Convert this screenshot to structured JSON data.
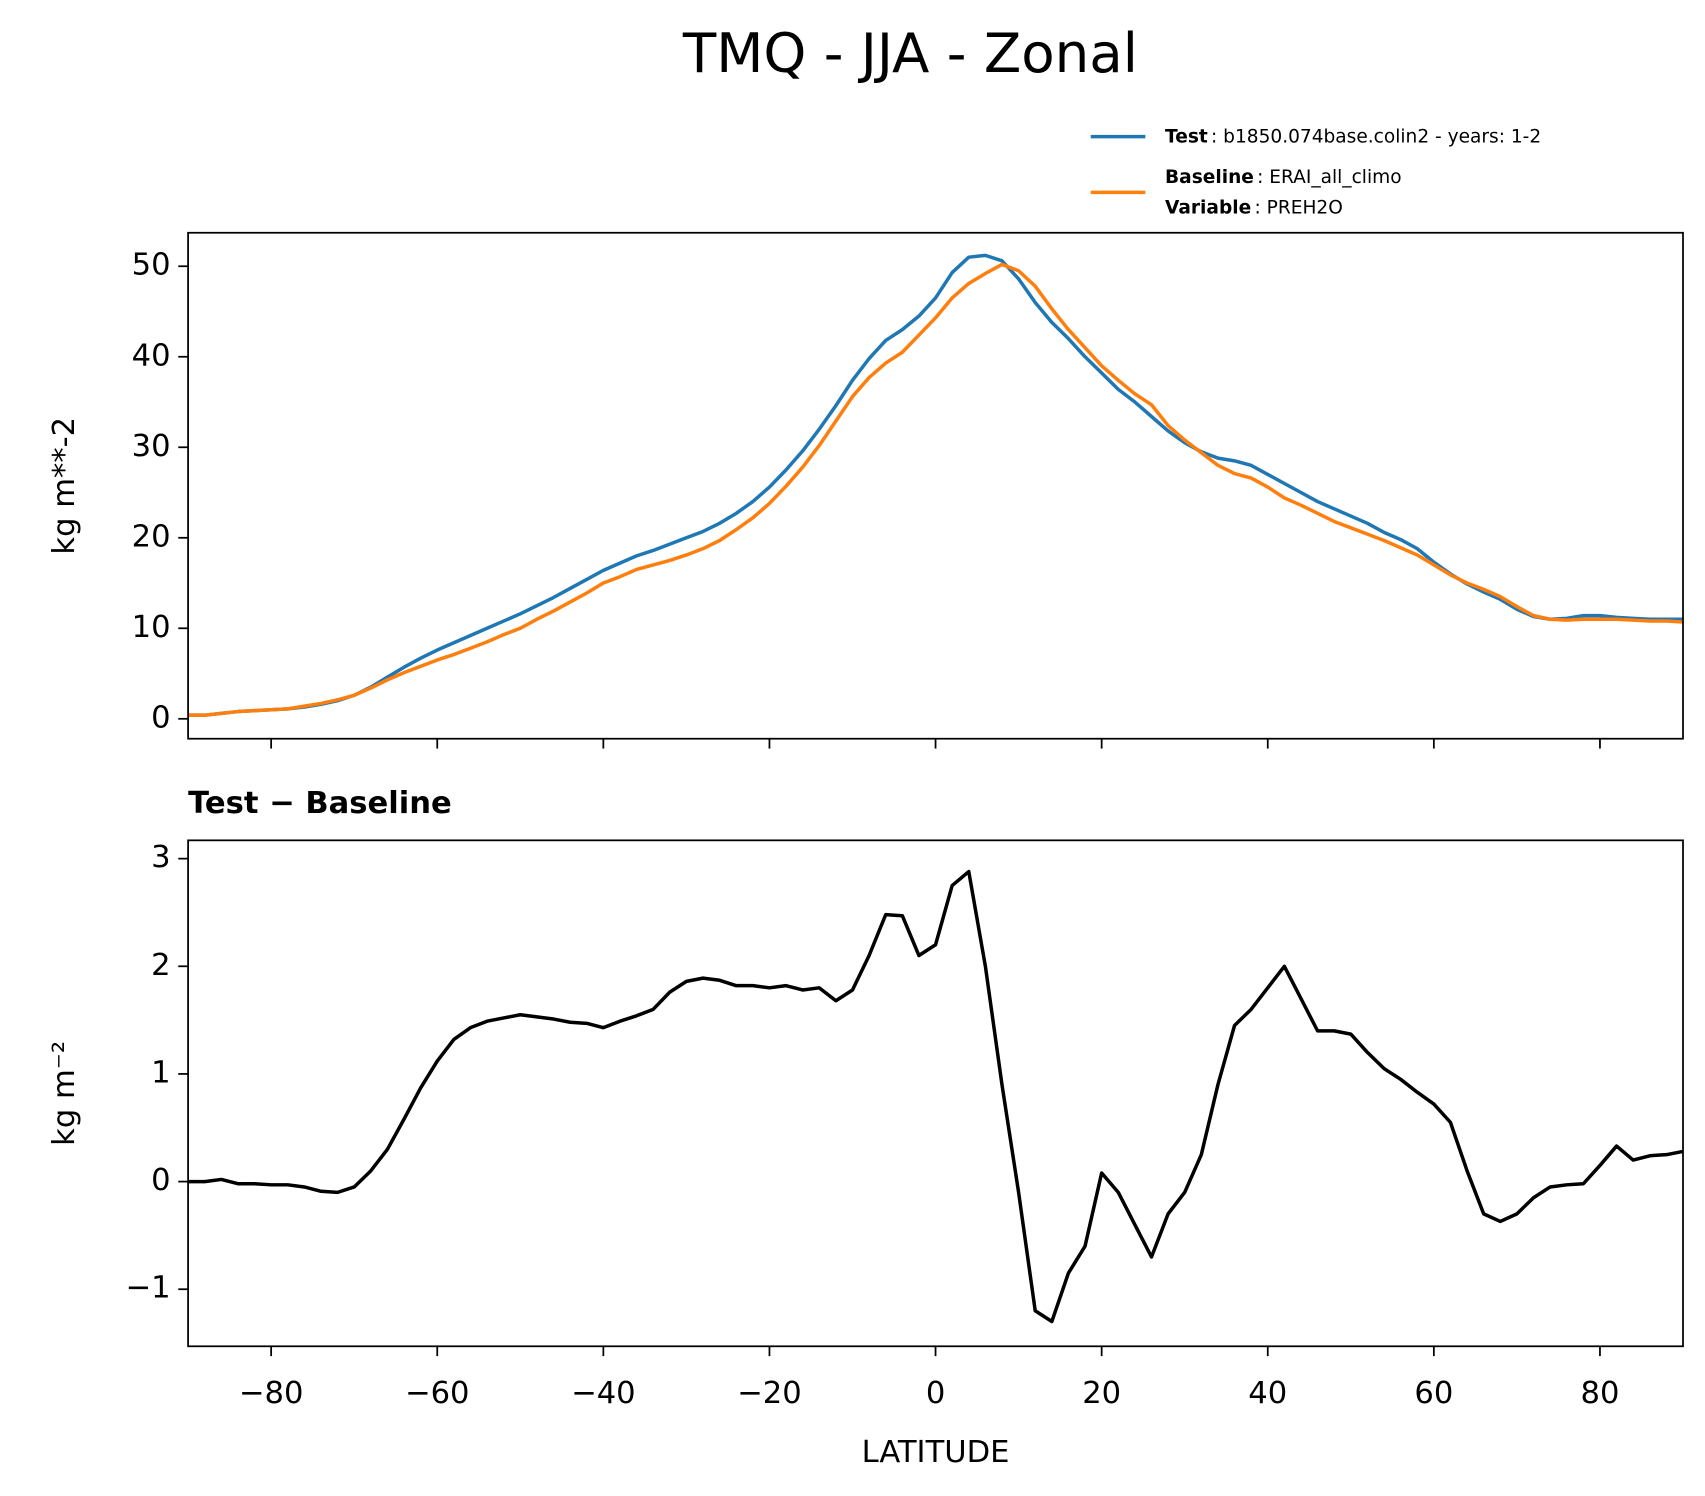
{
  "title": "TMQ - JJA - Zonal",
  "chart_data": [
    {
      "type": "line",
      "ylabel": "kg m**-2",
      "x": [
        -90,
        -88,
        -86,
        -84,
        -82,
        -80,
        -78,
        -76,
        -74,
        -72,
        -70,
        -68,
        -66,
        -64,
        -62,
        -60,
        -58,
        -56,
        -54,
        -52,
        -50,
        -48,
        -46,
        -44,
        -42,
        -40,
        -38,
        -36,
        -34,
        -32,
        -30,
        -28,
        -26,
        -24,
        -22,
        -20,
        -18,
        -16,
        -14,
        -12,
        -10,
        -8,
        -6,
        -4,
        -2,
        0,
        2,
        4,
        6,
        8,
        10,
        12,
        14,
        16,
        18,
        20,
        22,
        24,
        26,
        28,
        30,
        32,
        34,
        36,
        38,
        40,
        42,
        44,
        46,
        48,
        50,
        52,
        54,
        56,
        58,
        60,
        62,
        64,
        66,
        68,
        70,
        72,
        74,
        76,
        78,
        80,
        82,
        84,
        86,
        88,
        90
      ],
      "series": [
        {
          "name": "Test",
          "label": ": b1850.074base.colin2 - years: 1-2",
          "color": "#1f77b4",
          "values": [
            0.4,
            0.4,
            0.6,
            0.8,
            0.9,
            1.0,
            1.1,
            1.3,
            1.6,
            2.0,
            2.6,
            3.5,
            4.6,
            5.7,
            6.7,
            7.6,
            8.4,
            9.2,
            10.0,
            10.8,
            11.6,
            12.5,
            13.4,
            14.4,
            15.4,
            16.4,
            17.2,
            18.0,
            18.6,
            19.3,
            20.0,
            20.7,
            21.6,
            22.7,
            24.0,
            25.6,
            27.5,
            29.6,
            32.0,
            34.6,
            37.4,
            39.8,
            41.8,
            43.0,
            44.5,
            46.5,
            49.3,
            51.0,
            51.2,
            50.6,
            48.6,
            46.0,
            43.8,
            42.0,
            40.0,
            38.2,
            36.4,
            35.0,
            33.4,
            31.8,
            30.5,
            29.5,
            28.8,
            28.5,
            28.0,
            27.0,
            26.0,
            25.0,
            24.0,
            23.2,
            22.4,
            21.6,
            20.6,
            19.8,
            18.8,
            17.3,
            16.0,
            14.9,
            14.0,
            13.2,
            12.1,
            11.3,
            11.0,
            11.1,
            11.4,
            11.4,
            11.2,
            11.1,
            11.0,
            11.0,
            11.0
          ]
        },
        {
          "name": "Baseline",
          "label": ": ERAI_all_climo",
          "extra_name": "Variable",
          "extra_label": ": PREH2O",
          "color": "#ff7f0e",
          "values": [
            0.4,
            0.4,
            0.6,
            0.8,
            0.9,
            1.0,
            1.1,
            1.4,
            1.7,
            2.1,
            2.6,
            3.4,
            4.3,
            5.1,
            5.8,
            6.5,
            7.1,
            7.8,
            8.5,
            9.3,
            10.0,
            11.0,
            11.9,
            12.9,
            13.9,
            15.0,
            15.7,
            16.5,
            17.0,
            17.5,
            18.1,
            18.8,
            19.7,
            20.9,
            22.2,
            23.8,
            25.7,
            27.8,
            30.2,
            32.9,
            35.6,
            37.7,
            39.3,
            40.5,
            42.4,
            44.3,
            46.5,
            48.1,
            49.2,
            50.2,
            49.5,
            47.8,
            45.3,
            43.0,
            41.0,
            39.0,
            37.4,
            35.9,
            34.7,
            32.4,
            30.8,
            29.4,
            28.0,
            27.1,
            26.6,
            25.6,
            24.4,
            23.6,
            22.7,
            21.8,
            21.1,
            20.4,
            19.7,
            18.9,
            18.1,
            17.0,
            15.9,
            15.0,
            14.3,
            13.5,
            12.4,
            11.4,
            11.0,
            10.9,
            11.0,
            11.0,
            11.0,
            10.9,
            10.8,
            10.8,
            10.7
          ]
        }
      ],
      "xlim": [
        -90,
        90
      ],
      "xticks": [
        -80,
        -60,
        -40,
        -20,
        0,
        20,
        40,
        60,
        80
      ],
      "ylim": [
        -2.2,
        53.7
      ],
      "yticks": [
        0,
        10,
        20,
        30,
        40,
        50
      ],
      "grid": false,
      "legend": "upper right"
    },
    {
      "type": "line",
      "title": "Test − Baseline",
      "ylabel": "kg m⁻²",
      "xlabel": "LATITUDE",
      "x": [
        -90,
        -88,
        -86,
        -84,
        -82,
        -80,
        -78,
        -76,
        -74,
        -72,
        -70,
        -68,
        -66,
        -64,
        -62,
        -60,
        -58,
        -56,
        -54,
        -52,
        -50,
        -48,
        -46,
        -44,
        -42,
        -40,
        -38,
        -36,
        -34,
        -32,
        -30,
        -28,
        -26,
        -24,
        -22,
        -20,
        -18,
        -16,
        -14,
        -12,
        -10,
        -8,
        -6,
        -4,
        -2,
        0,
        2,
        4,
        6,
        8,
        10,
        12,
        14,
        16,
        18,
        20,
        22,
        24,
        26,
        28,
        30,
        32,
        34,
        36,
        38,
        40,
        42,
        44,
        46,
        48,
        50,
        52,
        54,
        56,
        58,
        60,
        62,
        64,
        66,
        68,
        70,
        72,
        74,
        76,
        78,
        80,
        82,
        84,
        86,
        88,
        90
      ],
      "series": [
        {
          "color": "#000000",
          "values": [
            0.0,
            0.0,
            0.02,
            -0.02,
            -0.02,
            -0.03,
            -0.03,
            -0.05,
            -0.09,
            -0.1,
            -0.05,
            0.1,
            0.3,
            0.58,
            0.87,
            1.12,
            1.32,
            1.43,
            1.49,
            1.52,
            1.55,
            1.53,
            1.51,
            1.48,
            1.47,
            1.43,
            1.49,
            1.54,
            1.6,
            1.76,
            1.86,
            1.89,
            1.87,
            1.82,
            1.82,
            1.8,
            1.82,
            1.78,
            1.8,
            1.68,
            1.78,
            2.1,
            2.48,
            2.47,
            2.1,
            2.2,
            2.75,
            2.88,
            2.0,
            0.9,
            -0.1,
            -1.2,
            -1.3,
            -0.85,
            -0.6,
            0.08,
            -0.1,
            -0.4,
            -0.7,
            -0.3,
            -0.1,
            0.25,
            0.9,
            1.45,
            1.6,
            1.8,
            2.0,
            1.7,
            1.4,
            1.4,
            1.37,
            1.2,
            1.05,
            0.95,
            0.83,
            0.72,
            0.55,
            0.1,
            -0.3,
            -0.37,
            -0.3,
            -0.15,
            -0.05,
            -0.03,
            -0.02,
            0.15,
            0.33,
            0.2,
            0.24,
            0.25,
            0.28
          ]
        }
      ],
      "xlim": [
        -90,
        90
      ],
      "xticks": [
        {
          "value": -80,
          "label": "−80"
        },
        {
          "value": -60,
          "label": "−60"
        },
        {
          "value": -40,
          "label": "−40"
        },
        {
          "value": -20,
          "label": "−20"
        },
        0,
        20,
        40,
        60,
        80
      ],
      "ylim": [
        -1.53,
        3.17
      ],
      "yticks": [
        {
          "value": -1,
          "label": "−1"
        },
        0,
        1,
        2,
        3
      ],
      "grid": false
    }
  ]
}
